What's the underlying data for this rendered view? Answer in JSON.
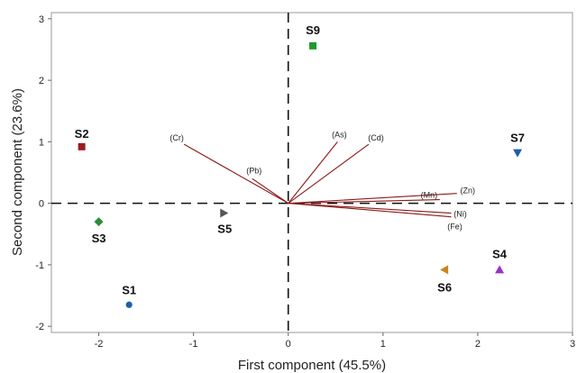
{
  "chart_data": {
    "type": "scatter",
    "subtype": "biplot",
    "xlabel": "First component (45.5%)",
    "ylabel": "Second component (23.6%)",
    "xlim": [
      -2.5,
      3.0
    ],
    "ylim": [
      -2.1,
      3.1
    ],
    "xticks": [
      -2,
      -1,
      0,
      1,
      2,
      3
    ],
    "yticks": [
      -2,
      -1,
      0,
      1,
      2,
      3
    ],
    "reference_lines": {
      "x": 0,
      "y": 0,
      "style": "dashed"
    },
    "points": [
      {
        "name": "S1",
        "x": -1.68,
        "y": -1.65,
        "marker": "circle",
        "color": "#1f5fa8"
      },
      {
        "name": "S2",
        "x": -2.18,
        "y": 0.92,
        "marker": "square",
        "color": "#9b1c1c"
      },
      {
        "name": "S3",
        "x": -2.0,
        "y": -0.3,
        "marker": "diamond",
        "color": "#2e8b3a"
      },
      {
        "name": "S4",
        "x": 2.23,
        "y": -1.08,
        "marker": "triangle-up",
        "color": "#9b30c0"
      },
      {
        "name": "S5",
        "x": -0.68,
        "y": -0.16,
        "marker": "triangle-right",
        "color": "#555555"
      },
      {
        "name": "S6",
        "x": 1.65,
        "y": -1.08,
        "marker": "triangle-left",
        "color": "#c8861a"
      },
      {
        "name": "S7",
        "x": 2.42,
        "y": 0.82,
        "marker": "triangle-down",
        "color": "#1f5fa8"
      },
      {
        "name": "S9",
        "x": 0.26,
        "y": 2.56,
        "marker": "square",
        "color": "#1f9a2e"
      }
    ],
    "loadings": [
      {
        "name": "(Cr)",
        "x": -1.1,
        "y": 0.96
      },
      {
        "name": "(Pb)",
        "x": -0.38,
        "y": 0.4
      },
      {
        "name": "(As)",
        "x": 0.52,
        "y": 1.0
      },
      {
        "name": "(Cd)",
        "x": 0.85,
        "y": 0.96
      },
      {
        "name": "(Zn)",
        "x": 1.78,
        "y": 0.16
      },
      {
        "name": "(Mn)",
        "x": 1.6,
        "y": 0.06
      },
      {
        "name": "(Ni)",
        "x": 1.72,
        "y": -0.16
      },
      {
        "name": "(Fe)",
        "x": 1.72,
        "y": -0.22
      }
    ],
    "loading_color": "#8b1a1a"
  }
}
